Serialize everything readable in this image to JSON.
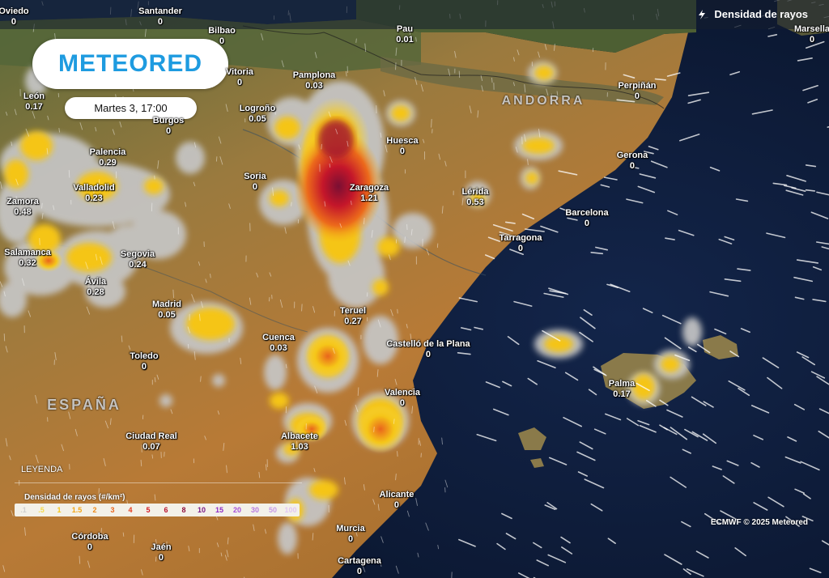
{
  "brand": "METEORED",
  "date_label": "Martes 3, 17:00",
  "layer_title": "Densidad de rayos",
  "legend": {
    "heading": "LEYENDA",
    "subtitle": "Densidad de rayos (#/km²)",
    "ticks": [
      {
        "label": ".1",
        "color": "#cfcfcf"
      },
      {
        "label": ".5",
        "color": "#f4d94a"
      },
      {
        "label": "1",
        "color": "#f5c518"
      },
      {
        "label": "1.5",
        "color": "#f2a516"
      },
      {
        "label": "2",
        "color": "#ee8a1a"
      },
      {
        "label": "3",
        "color": "#e9651c"
      },
      {
        "label": "4",
        "color": "#e43b1e"
      },
      {
        "label": "5",
        "color": "#d41a24"
      },
      {
        "label": "6",
        "color": "#b8122c"
      },
      {
        "label": "8",
        "color": "#8e0e3a"
      },
      {
        "label": "10",
        "color": "#7a1a86"
      },
      {
        "label": "15",
        "color": "#8e2bc4"
      },
      {
        "label": "20",
        "color": "#a64fd8"
      },
      {
        "label": "30",
        "color": "#b87ae0"
      },
      {
        "label": "50",
        "color": "#c89be6"
      },
      {
        "label": "100",
        "color": "#e2c8f3"
      }
    ]
  },
  "credit": "ECMWF © 2025 Meteored",
  "regions": [
    {
      "name": "ANDORRA"
    },
    {
      "name": "ESPAÑA"
    }
  ],
  "cities": [
    {
      "name": "Oviedo",
      "value": "0"
    },
    {
      "name": "Santander",
      "value": "0"
    },
    {
      "name": "Bilbao",
      "value": "0"
    },
    {
      "name": "Pau",
      "value": "0.01"
    },
    {
      "name": "Toledo",
      "value": "0"
    },
    {
      "name": "Marsella",
      "value": "0"
    },
    {
      "name": "León",
      "value": "0.17"
    },
    {
      "name": "Vitoria",
      "value": "0"
    },
    {
      "name": "Pamplona",
      "value": "0.03"
    },
    {
      "name": "Logroño",
      "value": "0.05"
    },
    {
      "name": "Burgos",
      "value": "0"
    },
    {
      "name": "Perpiñán",
      "value": "0"
    },
    {
      "name": "Huesca",
      "value": "0"
    },
    {
      "name": "Palencia",
      "value": "0.29"
    },
    {
      "name": "Gerona",
      "value": "0"
    },
    {
      "name": "Valladolid",
      "value": "0.23"
    },
    {
      "name": "Soria",
      "value": "0"
    },
    {
      "name": "Zaragoza",
      "value": "1.21"
    },
    {
      "name": "Lérida",
      "value": "0.53"
    },
    {
      "name": "Zamora",
      "value": "0.48"
    },
    {
      "name": "Barcelona",
      "value": "0"
    },
    {
      "name": "Tarragona",
      "value": "0"
    },
    {
      "name": "Salamanca",
      "value": "0.32"
    },
    {
      "name": "Segovia",
      "value": "0.24"
    },
    {
      "name": "Ávila",
      "value": "0.28"
    },
    {
      "name": "Madrid",
      "value": "0.05"
    },
    {
      "name": "Teruel",
      "value": "0.27"
    },
    {
      "name": "Cuenca",
      "value": "0.03"
    },
    {
      "name": "Castelló de la Plana",
      "value": "0"
    },
    {
      "name": "Toledo",
      "value": "0"
    },
    {
      "name": "Palma",
      "value": "0.17"
    },
    {
      "name": "Valencia",
      "value": "0"
    },
    {
      "name": "Ciudad Real",
      "value": "0.07"
    },
    {
      "name": "Albacete",
      "value": "1.03"
    },
    {
      "name": "Alicante",
      "value": "0"
    },
    {
      "name": "Murcia",
      "value": "0"
    },
    {
      "name": "Córdoba",
      "value": "0"
    },
    {
      "name": "Jaén",
      "value": "0"
    },
    {
      "name": "Cartagena",
      "value": "0"
    }
  ]
}
